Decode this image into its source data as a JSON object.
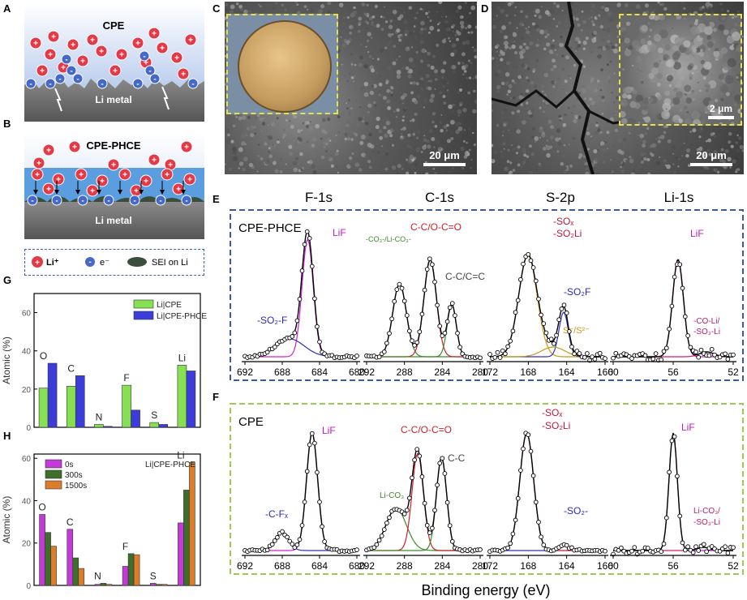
{
  "panels": {
    "A": "A",
    "B": "B",
    "C": "C",
    "D": "D",
    "E": "E",
    "F": "F",
    "G": "G",
    "H": "H"
  },
  "schematic": {
    "a_title": "CPE",
    "b_title": "CPE-PHCE",
    "li_metal": "Li metal",
    "legend": {
      "li_ion": "Li⁺",
      "electron": "e⁻",
      "sei": "SEI on Li"
    },
    "colors": {
      "ion": "#e23a46",
      "electron": "#4668c8",
      "metal": "#6b6b6b",
      "sei": "#3b4e39",
      "layer": "#5a9ee0"
    }
  },
  "sem": {
    "scale_c": "20 μm",
    "scale_d": "20 μm",
    "scale_d_inset": "2 μm"
  },
  "xps": {
    "headers": [
      "F-1s",
      "C-1s",
      "S-2p",
      "Li-1s"
    ],
    "xlabel": "Binding energy (eV)",
    "e_label": "CPE-PHCE",
    "f_label": "CPE",
    "e_box_color": "#3b5b9a",
    "f_box_color": "#9acb50",
    "ticks": [
      [
        "692",
        "688",
        "684",
        "680"
      ],
      [
        "292",
        "288",
        "284",
        "280"
      ],
      [
        "172",
        "168",
        "164",
        "160"
      ],
      [
        "60",
        "56",
        "52"
      ]
    ],
    "e_annotations": {
      "f_lif": "LiF",
      "f_so2f": "-SO₂-F",
      "c_coo": "C-C/O-C=O",
      "c_co3": "-CO₃-/Li-CO₃-",
      "c_cc": "C-C/C=C",
      "s_sox": "-SOₓ",
      "s_so2li": "-SO₂Li",
      "s_so2f": "-SO₂F",
      "s_s2": "S⁻/S²⁻",
      "li_lif": "LiF",
      "li_co": "-CO-Li/",
      "li_so3": "-SO₃-Li"
    },
    "f_annotations": {
      "f_lif": "LiF",
      "f_cfx": "-C-Fₓ",
      "c_coo": "C-C/O-C=O",
      "c_lico3": "Li-CO₃",
      "c_cc": "C-C",
      "s_sox": "-SOₓ",
      "s_so2li": "-SO₂Li",
      "s_so2": "-SO₂-",
      "li_lif": "LiF",
      "li_co3": "Li-CO₃/",
      "li_so3": "-SO₃-Li"
    }
  },
  "chart_data": [
    {
      "type": "bar",
      "panel": "G",
      "ylabel": "Atomic (%)",
      "ylim": [
        0,
        70
      ],
      "yticks": [
        "0",
        "20",
        "40",
        "60"
      ],
      "categories": [
        "O",
        "C",
        "N",
        "F",
        "S",
        "Li"
      ],
      "legend_position": "top-right",
      "series": [
        {
          "name": "Li|CPE",
          "color": "#86e052",
          "values": [
            20.5,
            21.5,
            1.5,
            22,
            2.5,
            32.5
          ]
        },
        {
          "name": "Li|CPE-PHCE",
          "color": "#3c3cd8",
          "values": [
            33.5,
            27,
            0.5,
            9,
            1.5,
            29.5
          ]
        }
      ]
    },
    {
      "type": "bar",
      "panel": "H",
      "ylabel": "Atomic (%)",
      "ylim": [
        0,
        62
      ],
      "yticks": [
        "0",
        "20",
        "40",
        "60"
      ],
      "annotation": "Li|CPE-PHCE",
      "categories": [
        "O",
        "C",
        "N",
        "F",
        "S",
        "Li"
      ],
      "legend_position": "top-left",
      "series": [
        {
          "name": "0s",
          "color": "#c33ad8",
          "values": [
            33.5,
            26.5,
            0.5,
            9,
            1,
            29.5
          ]
        },
        {
          "name": "300s",
          "color": "#3f6e2c",
          "values": [
            25,
            13,
            1,
            15,
            0.5,
            45
          ]
        },
        {
          "name": "1500s",
          "color": "#dc7d2b",
          "values": [
            18.5,
            8,
            0.5,
            14.5,
            0.5,
            58
          ]
        }
      ]
    }
  ]
}
